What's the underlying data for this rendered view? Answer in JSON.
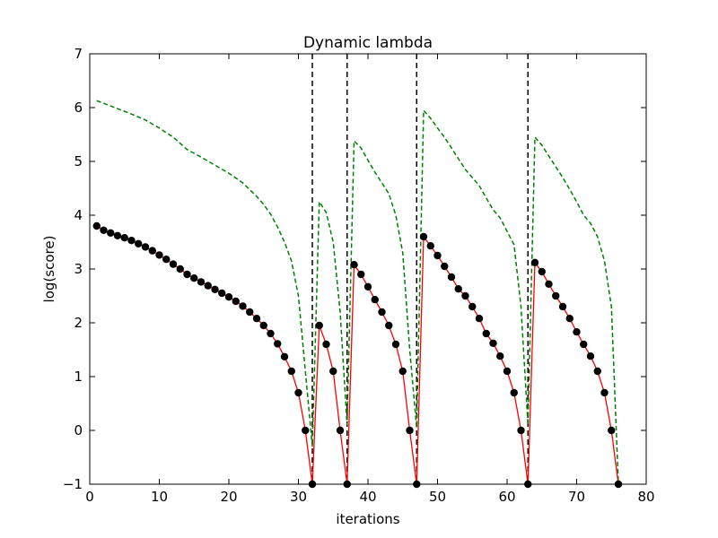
{
  "chart_data": {
    "type": "line",
    "title": "Dynamic lambda",
    "xlabel": "iterations",
    "ylabel": "log(score)",
    "xlim": [
      0,
      80
    ],
    "ylim": [
      -1,
      7
    ],
    "xticks": [
      0,
      10,
      20,
      30,
      40,
      50,
      60,
      70,
      80
    ],
    "yticks": [
      -1,
      0,
      1,
      2,
      3,
      4,
      5,
      6,
      7
    ],
    "xtick_labels": [
      "0",
      "10",
      "20",
      "30",
      "40",
      "50",
      "60",
      "70",
      "80"
    ],
    "ytick_labels": [
      "−1",
      "0",
      "1",
      "2",
      "3",
      "4",
      "5",
      "6",
      "7"
    ],
    "grid": false,
    "series": [
      {
        "style": "red solid line with black circle markers",
        "color": "#ff0000",
        "marker_color": "#000000",
        "x": [
          1,
          2,
          3,
          4,
          5,
          6,
          7,
          8,
          9,
          10,
          11,
          12,
          13,
          14,
          15,
          16,
          17,
          18,
          19,
          20,
          21,
          22,
          23,
          24,
          25,
          26,
          27,
          28,
          29,
          30,
          31,
          32,
          33,
          34,
          35,
          36,
          37,
          38,
          39,
          40,
          41,
          42,
          43,
          44,
          45,
          46,
          47,
          48,
          49,
          50,
          51,
          52,
          53,
          54,
          55,
          56,
          57,
          58,
          59,
          60,
          61,
          62,
          63,
          64,
          65,
          66,
          67,
          68,
          69,
          70,
          71,
          72,
          73,
          74,
          75,
          76
        ],
        "y": [
          3.8,
          3.72,
          3.67,
          3.62,
          3.58,
          3.53,
          3.47,
          3.41,
          3.34,
          3.26,
          3.18,
          3.09,
          3.0,
          2.9,
          2.83,
          2.76,
          2.69,
          2.62,
          2.55,
          2.48,
          2.4,
          2.31,
          2.2,
          2.08,
          1.95,
          1.8,
          1.61,
          1.37,
          1.1,
          0.7,
          0.0,
          -1.0,
          1.95,
          1.6,
          1.1,
          0.0,
          -1.0,
          3.08,
          2.9,
          2.67,
          2.43,
          2.2,
          1.95,
          1.6,
          1.1,
          0.0,
          -1.0,
          3.6,
          3.43,
          3.25,
          3.05,
          2.85,
          2.63,
          2.5,
          2.3,
          2.08,
          1.8,
          1.62,
          1.38,
          1.1,
          0.7,
          0.0,
          -1.0,
          3.12,
          2.95,
          2.72,
          2.5,
          2.3,
          2.08,
          1.83,
          1.6,
          1.38,
          1.1,
          0.7,
          0.0,
          -1.0
        ]
      },
      {
        "style": "green dashed line",
        "color": "#008000",
        "x": [
          1,
          2,
          4,
          6,
          8,
          10,
          12,
          14,
          16,
          18,
          20,
          22,
          24,
          25,
          26,
          27,
          28,
          29,
          30,
          31,
          32,
          33,
          34,
          35,
          36,
          37,
          38,
          39,
          40,
          41,
          42,
          43,
          44,
          45,
          46,
          47,
          48,
          49,
          50,
          51,
          52,
          53,
          54,
          55,
          56,
          57,
          58,
          59,
          60,
          61,
          62,
          63,
          64,
          65,
          66,
          67,
          68,
          69,
          70,
          71,
          72,
          73,
          74,
          75,
          76
        ],
        "y": [
          6.13,
          6.08,
          5.98,
          5.88,
          5.77,
          5.62,
          5.45,
          5.22,
          5.08,
          4.93,
          4.78,
          4.6,
          4.35,
          4.2,
          4.02,
          3.78,
          3.5,
          3.15,
          2.5,
          1.1,
          -0.3,
          4.25,
          4.05,
          3.5,
          2.2,
          0.1,
          5.38,
          5.25,
          5.02,
          4.8,
          4.6,
          4.4,
          4.0,
          3.3,
          1.5,
          0.05,
          5.95,
          5.8,
          5.62,
          5.45,
          5.25,
          5.05,
          4.85,
          4.7,
          4.55,
          4.32,
          4.1,
          3.95,
          3.7,
          3.45,
          2.3,
          0.1,
          5.45,
          5.3,
          5.1,
          4.9,
          4.7,
          4.48,
          4.25,
          4.0,
          3.85,
          3.6,
          3.15,
          2.3,
          -1.0
        ]
      }
    ],
    "vlines": {
      "style": "black dashed vertical lines",
      "color": "#000000",
      "x": [
        32,
        37,
        47,
        63
      ]
    }
  }
}
